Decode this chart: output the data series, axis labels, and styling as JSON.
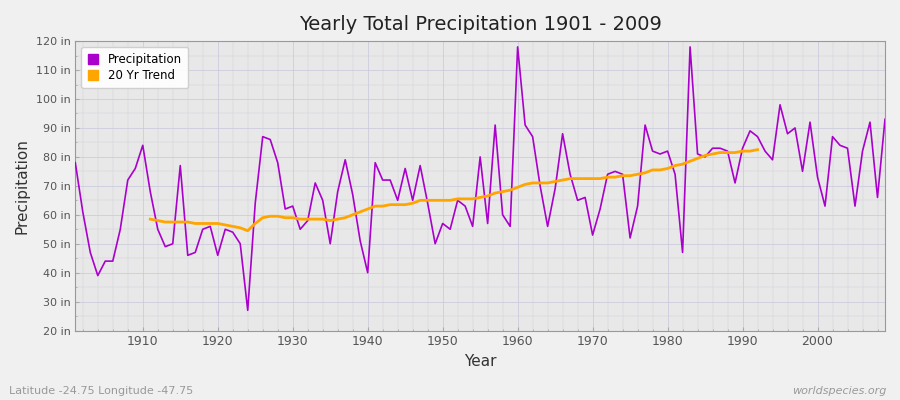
{
  "title": "Yearly Total Precipitation 1901 - 2009",
  "xlabel": "Year",
  "ylabel": "Precipitation",
  "lat_lon_label": "Latitude -24.75 Longitude -47.75",
  "watermark": "worldspecies.org",
  "precip_color": "#AA00CC",
  "trend_color": "#FFA500",
  "bg_color": "#F0F0F0",
  "plot_bg_color": "#E8E8E8",
  "grid_color": "#CCCCDD",
  "ylim": [
    20,
    120
  ],
  "yticks": [
    20,
    30,
    40,
    50,
    60,
    70,
    80,
    90,
    100,
    110,
    120
  ],
  "ytick_labels": [
    "20 in",
    "30 in",
    "40 in",
    "50 in",
    "60 in",
    "70 in",
    "80 in",
    "90 in",
    "100 in",
    "110 in",
    "120 in"
  ],
  "xlim": [
    1901,
    2009
  ],
  "xticks": [
    1910,
    1920,
    1930,
    1940,
    1950,
    1960,
    1970,
    1980,
    1990,
    2000
  ],
  "years": [
    1901,
    1902,
    1903,
    1904,
    1905,
    1906,
    1907,
    1908,
    1909,
    1910,
    1911,
    1912,
    1913,
    1914,
    1915,
    1916,
    1917,
    1918,
    1919,
    1920,
    1921,
    1922,
    1923,
    1924,
    1925,
    1926,
    1927,
    1928,
    1929,
    1930,
    1931,
    1932,
    1933,
    1934,
    1935,
    1936,
    1937,
    1938,
    1939,
    1940,
    1941,
    1942,
    1943,
    1944,
    1945,
    1946,
    1947,
    1948,
    1949,
    1950,
    1951,
    1952,
    1953,
    1954,
    1955,
    1956,
    1957,
    1958,
    1959,
    1960,
    1961,
    1962,
    1963,
    1964,
    1965,
    1966,
    1967,
    1968,
    1969,
    1970,
    1971,
    1972,
    1973,
    1974,
    1975,
    1976,
    1977,
    1978,
    1979,
    1980,
    1981,
    1982,
    1983,
    1984,
    1985,
    1986,
    1987,
    1988,
    1989,
    1990,
    1991,
    1992,
    1993,
    1994,
    1995,
    1996,
    1997,
    1998,
    1999,
    2000,
    2001,
    2002,
    2003,
    2004,
    2005,
    2006,
    2007,
    2008,
    2009
  ],
  "precip": [
    78,
    61,
    47,
    39,
    44,
    44,
    55,
    72,
    76,
    84,
    68,
    55,
    49,
    50,
    77,
    46,
    47,
    55,
    56,
    46,
    55,
    54,
    50,
    27,
    64,
    87,
    86,
    78,
    62,
    63,
    55,
    58,
    71,
    65,
    50,
    68,
    79,
    67,
    51,
    40,
    78,
    72,
    72,
    65,
    76,
    65,
    77,
    64,
    50,
    57,
    55,
    65,
    63,
    56,
    80,
    57,
    91,
    60,
    56,
    118,
    91,
    87,
    70,
    56,
    69,
    88,
    74,
    65,
    66,
    53,
    62,
    74,
    75,
    74,
    52,
    63,
    91,
    82,
    81,
    82,
    74,
    47,
    118,
    81,
    80,
    83,
    83,
    82,
    71,
    83,
    89,
    87,
    82,
    79,
    98,
    88,
    90,
    75,
    92,
    73,
    63,
    87,
    84,
    83,
    63,
    82,
    92,
    66,
    93
  ],
  "trend": [
    null,
    null,
    null,
    null,
    null,
    null,
    null,
    null,
    null,
    null,
    58.5,
    58.0,
    57.5,
    57.5,
    57.5,
    57.5,
    57.0,
    57.0,
    57.0,
    57.0,
    56.5,
    56.0,
    55.5,
    54.5,
    57.0,
    59.0,
    59.5,
    59.5,
    59.0,
    59.0,
    58.5,
    58.5,
    58.5,
    58.5,
    58.0,
    58.5,
    59.0,
    60.0,
    61.0,
    62.0,
    63.0,
    63.0,
    63.5,
    63.5,
    63.5,
    64.0,
    65.0,
    65.0,
    65.0,
    65.0,
    65.0,
    65.5,
    65.5,
    65.5,
    66.0,
    66.5,
    67.5,
    68.0,
    68.5,
    69.5,
    70.5,
    71.0,
    71.0,
    71.0,
    71.5,
    72.0,
    72.5,
    72.5,
    72.5,
    72.5,
    72.5,
    73.0,
    73.0,
    73.5,
    73.5,
    74.0,
    74.5,
    75.5,
    75.5,
    76.0,
    77.0,
    77.5,
    78.5,
    79.5,
    80.5,
    81.0,
    81.5,
    81.5,
    81.5,
    82.0,
    82.0,
    82.5,
    null,
    null,
    null,
    null,
    null,
    null,
    null,
    null,
    null,
    null,
    null,
    null,
    null,
    null,
    null,
    null,
    null
  ]
}
